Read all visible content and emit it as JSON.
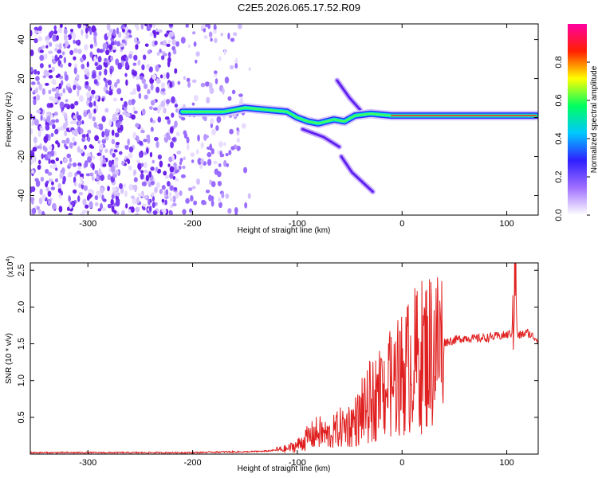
{
  "title": "C2E5.2026.065.17.52.R09",
  "chart_data": [
    {
      "type": "heatmap",
      "xlabel": "Height of straight line (km)",
      "ylabel": "Frequency (Hz)",
      "xlim": [
        -355,
        130
      ],
      "ylim": [
        -50,
        48
      ],
      "xticks": [
        -300,
        -200,
        -100,
        0,
        100
      ],
      "yticks": [
        -40,
        -20,
        0,
        20,
        40
      ],
      "colorbar": {
        "label": "Normalized spectral amplitude",
        "range": [
          0,
          1
        ],
        "ticks": [
          "0.0",
          "0.2",
          "0.4",
          "0.6",
          "0.8"
        ],
        "tick_values": [
          0,
          0.2,
          0.4,
          0.6,
          0.8
        ],
        "colors": [
          "#ffffff",
          "#a070ff",
          "#3020ff",
          "#00c8ff",
          "#00ff60",
          "#ffff00",
          "#ff2000",
          "#ff00a0"
        ]
      },
      "noise_region_km": [
        -355,
        -145
      ],
      "signal_trace": [
        {
          "x": -210,
          "y": 3
        },
        {
          "x": -190,
          "y": 3
        },
        {
          "x": -170,
          "y": 3
        },
        {
          "x": -150,
          "y": 5
        },
        {
          "x": -130,
          "y": 4
        },
        {
          "x": -110,
          "y": 3
        },
        {
          "x": -100,
          "y": 0
        },
        {
          "x": -90,
          "y": -2
        },
        {
          "x": -80,
          "y": -3
        },
        {
          "x": -65,
          "y": -1
        },
        {
          "x": -55,
          "y": -2
        },
        {
          "x": -45,
          "y": 1
        },
        {
          "x": -30,
          "y": 2
        },
        {
          "x": -10,
          "y": 1
        },
        {
          "x": 10,
          "y": 1
        },
        {
          "x": 50,
          "y": 1
        },
        {
          "x": 90,
          "y": 1
        },
        {
          "x": 128,
          "y": 1
        }
      ],
      "secondary_traces": [
        [
          {
            "x": -95,
            "y": -6
          },
          {
            "x": -75,
            "y": -10
          },
          {
            "x": -60,
            "y": -15
          }
        ],
        [
          {
            "x": -58,
            "y": -20
          },
          {
            "x": -48,
            "y": -28
          },
          {
            "x": -28,
            "y": -38
          }
        ],
        [
          {
            "x": -62,
            "y": 19
          },
          {
            "x": -50,
            "y": 10
          },
          {
            "x": -40,
            "y": 4
          }
        ]
      ]
    },
    {
      "type": "line",
      "xlabel": "Height of straight line (km)",
      "ylabel": "SNR (10 * v/v)",
      "scale_note": "(x10",
      "scale_exp": "4",
      "scale_close": ")",
      "xlim": [
        -355,
        130
      ],
      "ylim": [
        0,
        2.6
      ],
      "xticks": [
        -300,
        -200,
        -100,
        0,
        100
      ],
      "yticks": [
        0.5,
        1.0,
        1.5,
        2.0,
        2.5
      ],
      "color": "#e02020",
      "series": [
        {
          "name": "SNR",
          "x": [
            -355,
            -300,
            -250,
            -200,
            -170,
            -150,
            -130,
            -110,
            -100,
            -90,
            -80,
            -70,
            -60,
            -50,
            -40,
            -30,
            -20,
            -10,
            0,
            10,
            20,
            30,
            40,
            50,
            60,
            70,
            80,
            90,
            100,
            105,
            108,
            110,
            115,
            120,
            130
          ],
          "y": [
            0.02,
            0.02,
            0.02,
            0.02,
            0.03,
            0.03,
            0.04,
            0.07,
            0.12,
            0.22,
            0.3,
            0.25,
            0.35,
            0.4,
            0.5,
            0.7,
            0.85,
            0.95,
            1.1,
            1.25,
            1.35,
            1.45,
            1.52,
            1.55,
            1.58,
            1.57,
            1.58,
            1.6,
            1.62,
            1.65,
            2.6,
            1.6,
            1.63,
            1.65,
            1.55
          ]
        }
      ]
    }
  ]
}
